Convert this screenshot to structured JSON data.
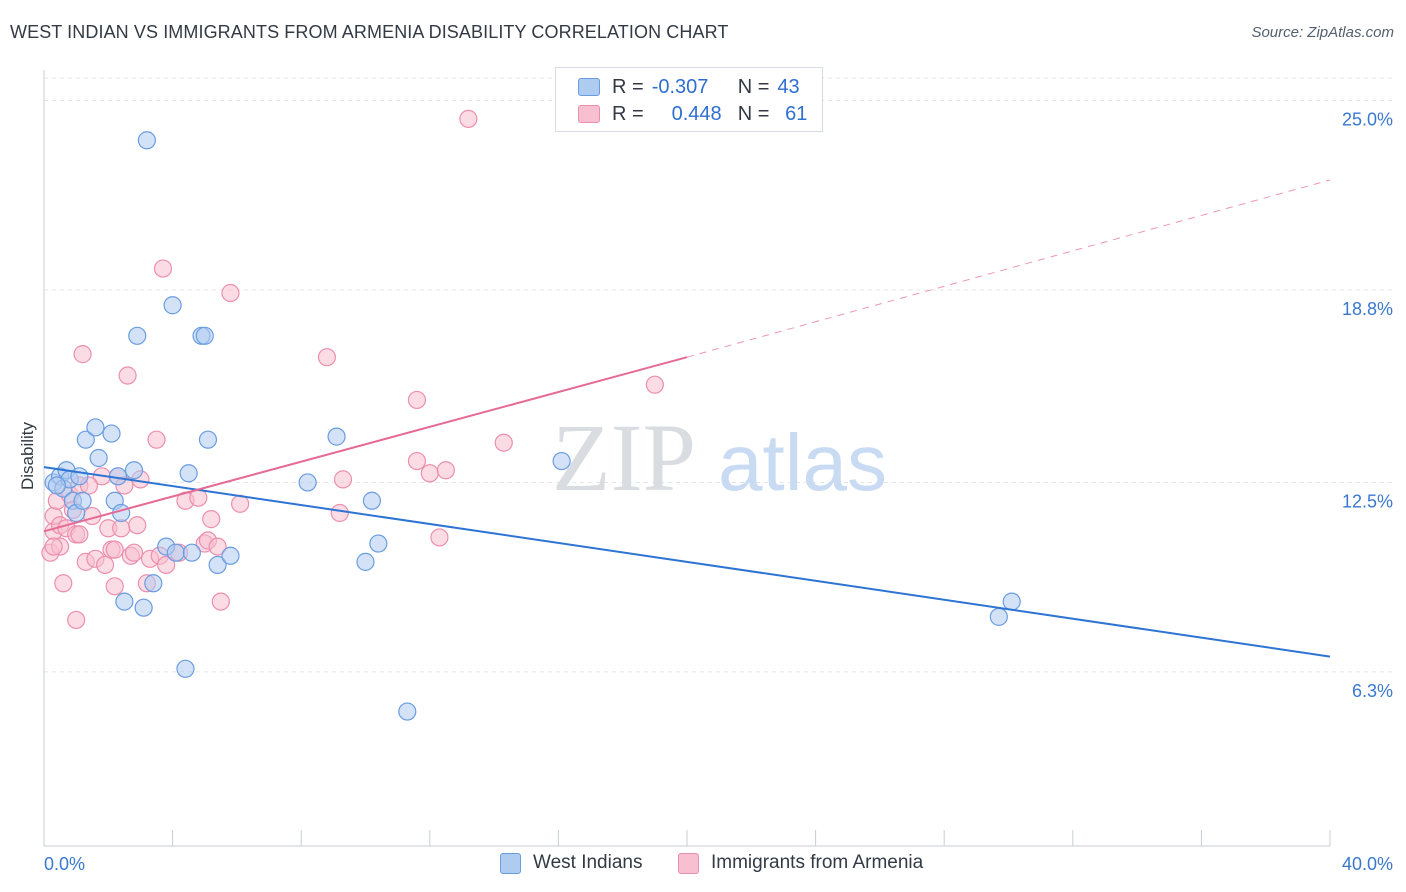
{
  "header": {
    "title": "WEST INDIAN VS IMMIGRANTS FROM ARMENIA DISABILITY CORRELATION CHART",
    "source": "Source: ZipAtlas.com"
  },
  "legend": {
    "rows": [
      {
        "r_label": "R =",
        "r_value": "-0.307",
        "n_label": "N =",
        "n_value": "43"
      },
      {
        "r_label": "R =",
        "r_value": "0.448",
        "n_label": "N =",
        "n_value": "61"
      }
    ]
  },
  "watermark": {
    "zip": "ZIP",
    "atlas": "atlas"
  },
  "colors": {
    "blue_fill": "#aecbf0",
    "blue_stroke": "#6a9de0",
    "blue_line": "#2d74d3",
    "pink_fill": "#f7bfd0",
    "pink_stroke": "#ec8fae",
    "pink_line": "#e56b94",
    "axis_text": "#3a78cf",
    "grid": "#e2e5ea"
  },
  "chart_data": {
    "type": "scatter",
    "title": "WEST INDIAN VS IMMIGRANTS FROM ARMENIA DISABILITY CORRELATION CHART",
    "ylabel": "Disability",
    "xlabel": "",
    "xlim": [
      0,
      40
    ],
    "ylim": [
      0.6,
      26.0
    ],
    "x_tick_labels": [
      "0.0%",
      "40.0%"
    ],
    "y_ticks": [
      6.3,
      12.5,
      18.8,
      25.0
    ],
    "y_tick_labels": [
      "6.3%",
      "12.5%",
      "18.8%",
      "25.0%"
    ],
    "grid": "horizontal dashed",
    "legend_position": "bottom-center",
    "series": [
      {
        "name": "West Indians",
        "color": "#aecbf0",
        "r": -0.307,
        "n": 43,
        "trend": {
          "x": [
            0,
            40
          ],
          "y": [
            13.0,
            6.8
          ]
        },
        "points": [
          [
            0.3,
            12.5
          ],
          [
            0.5,
            12.7
          ],
          [
            0.6,
            12.3
          ],
          [
            0.7,
            12.9
          ],
          [
            0.8,
            12.6
          ],
          [
            0.9,
            11.9
          ],
          [
            1.0,
            11.5
          ],
          [
            1.2,
            11.9
          ],
          [
            1.3,
            13.9
          ],
          [
            1.6,
            14.3
          ],
          [
            1.7,
            13.3
          ],
          [
            2.1,
            14.1
          ],
          [
            2.2,
            11.9
          ],
          [
            2.3,
            12.7
          ],
          [
            2.4,
            11.5
          ],
          [
            2.5,
            8.6
          ],
          [
            2.8,
            12.9
          ],
          [
            2.9,
            17.3
          ],
          [
            3.1,
            8.4
          ],
          [
            3.2,
            23.7
          ],
          [
            3.4,
            9.2
          ],
          [
            3.8,
            10.4
          ],
          [
            4.0,
            18.3
          ],
          [
            4.1,
            10.2
          ],
          [
            4.4,
            6.4
          ],
          [
            4.5,
            12.8
          ],
          [
            4.6,
            10.2
          ],
          [
            4.9,
            17.3
          ],
          [
            5.1,
            13.9
          ],
          [
            5.4,
            9.8
          ],
          [
            5.8,
            10.1
          ],
          [
            8.2,
            12.5
          ],
          [
            9.1,
            14.0
          ],
          [
            10.0,
            9.9
          ],
          [
            10.2,
            11.9
          ],
          [
            10.4,
            10.5
          ],
          [
            11.3,
            5.0
          ],
          [
            16.1,
            13.2
          ],
          [
            29.7,
            8.1
          ],
          [
            30.1,
            8.6
          ],
          [
            5.0,
            17.3
          ],
          [
            0.4,
            12.4
          ],
          [
            1.1,
            12.7
          ]
        ]
      },
      {
        "name": "Immigrants from Armenia",
        "color": "#f7bfd0",
        "r": 0.448,
        "n": 61,
        "trend": {
          "x": [
            0,
            20
          ],
          "y": [
            10.9,
            16.6
          ]
        },
        "trend_ext": {
          "x": [
            20,
            40
          ],
          "y": [
            16.6,
            22.4
          ]
        },
        "points": [
          [
            0.2,
            10.2
          ],
          [
            0.3,
            10.9
          ],
          [
            0.3,
            11.4
          ],
          [
            0.4,
            11.9
          ],
          [
            0.5,
            11.1
          ],
          [
            0.5,
            10.4
          ],
          [
            0.6,
            9.2
          ],
          [
            0.7,
            11.0
          ],
          [
            0.8,
            12.1
          ],
          [
            0.9,
            11.6
          ],
          [
            1.0,
            10.8
          ],
          [
            1.0,
            8.0
          ],
          [
            1.1,
            12.4
          ],
          [
            1.1,
            10.8
          ],
          [
            1.2,
            16.7
          ],
          [
            1.3,
            9.9
          ],
          [
            1.5,
            11.4
          ],
          [
            1.6,
            10.0
          ],
          [
            1.8,
            12.7
          ],
          [
            1.9,
            9.8
          ],
          [
            2.0,
            11.0
          ],
          [
            2.1,
            10.3
          ],
          [
            2.2,
            9.1
          ],
          [
            2.3,
            12.7
          ],
          [
            2.4,
            11.0
          ],
          [
            2.5,
            12.4
          ],
          [
            2.6,
            16.0
          ],
          [
            2.7,
            10.1
          ],
          [
            2.8,
            10.2
          ],
          [
            2.9,
            11.1
          ],
          [
            3.0,
            12.6
          ],
          [
            3.2,
            9.2
          ],
          [
            3.3,
            10.0
          ],
          [
            3.5,
            13.9
          ],
          [
            3.6,
            10.1
          ],
          [
            3.7,
            19.5
          ],
          [
            3.8,
            9.8
          ],
          [
            4.2,
            10.2
          ],
          [
            4.4,
            11.9
          ],
          [
            4.8,
            12.0
          ],
          [
            5.0,
            10.5
          ],
          [
            5.1,
            10.6
          ],
          [
            5.2,
            11.3
          ],
          [
            5.4,
            10.4
          ],
          [
            5.5,
            8.6
          ],
          [
            5.8,
            18.7
          ],
          [
            6.1,
            11.8
          ],
          [
            8.8,
            16.6
          ],
          [
            9.2,
            11.5
          ],
          [
            9.3,
            12.6
          ],
          [
            11.6,
            15.2
          ],
          [
            11.6,
            13.2
          ],
          [
            12.0,
            12.8
          ],
          [
            12.3,
            10.7
          ],
          [
            12.5,
            12.9
          ],
          [
            13.2,
            24.4
          ],
          [
            14.3,
            13.8
          ],
          [
            19.0,
            15.7
          ],
          [
            0.3,
            10.4
          ],
          [
            1.4,
            12.4
          ],
          [
            2.2,
            10.3
          ]
        ]
      }
    ]
  }
}
